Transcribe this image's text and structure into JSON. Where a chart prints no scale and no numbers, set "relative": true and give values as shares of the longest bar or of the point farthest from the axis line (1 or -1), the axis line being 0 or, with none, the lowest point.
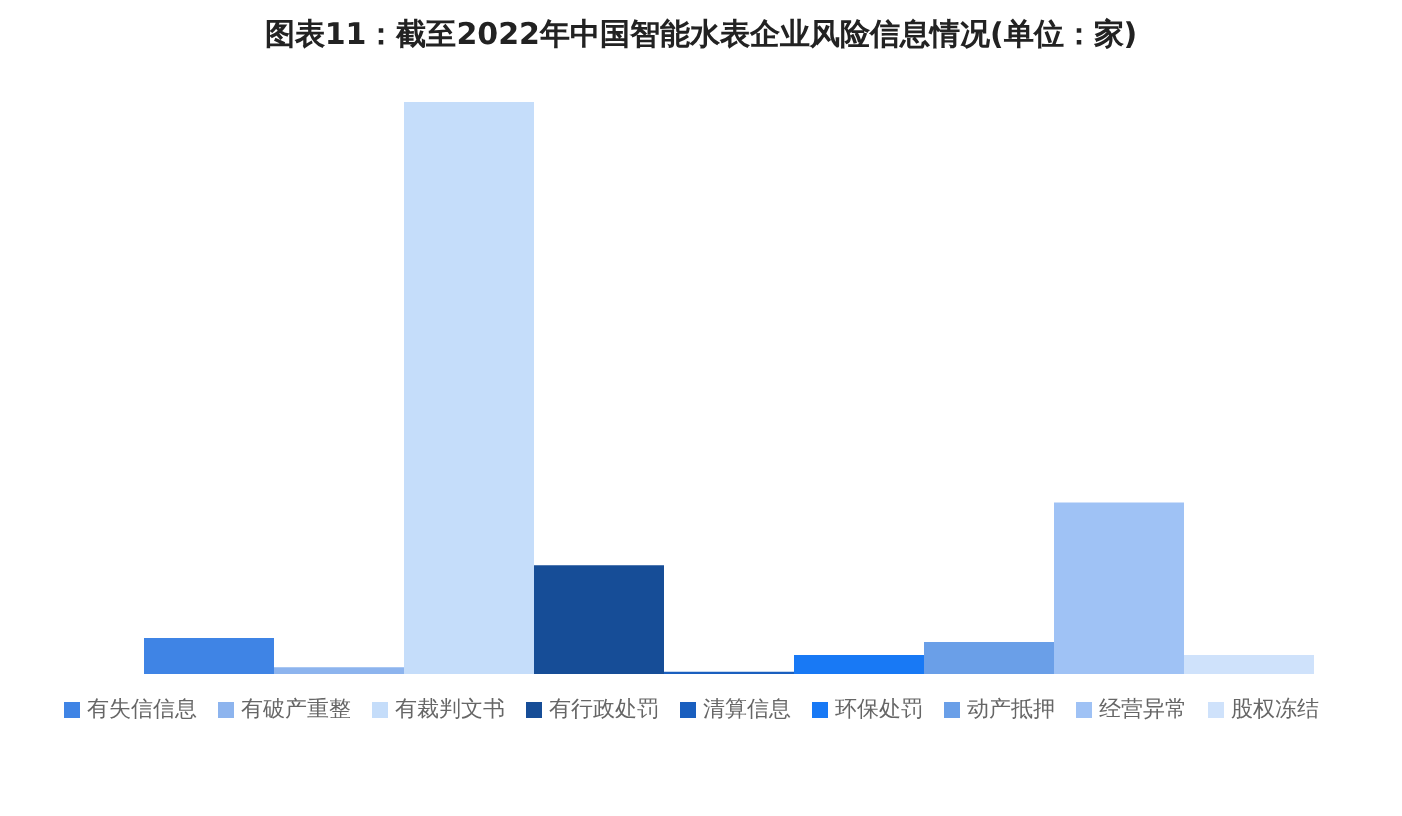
{
  "chart_data": {
    "type": "bar",
    "title": "图表11：截至2022年中国智能水表企业风险信息情况(单位：家)",
    "relative": true,
    "categories": [
      null
    ],
    "legend": "bottom",
    "grid": false,
    "series": [
      {
        "name": "有失信信息",
        "color": "#3f84e5",
        "values": [
          0.063
        ]
      },
      {
        "name": "有破产重整",
        "color": "#8db4ee",
        "values": [
          0.012
        ]
      },
      {
        "name": "有裁判文书",
        "color": "#c5ddfa",
        "values": [
          1
        ]
      },
      {
        "name": "有行政处罚",
        "color": "#164d97",
        "values": [
          0.19
        ]
      },
      {
        "name": "清算信息",
        "color": "#1a5fbf",
        "values": [
          0.004
        ]
      },
      {
        "name": "环保处罚",
        "color": "#1879f5",
        "values": [
          0.033
        ]
      },
      {
        "name": "动产抵押",
        "color": "#6a9fe8",
        "values": [
          0.056
        ]
      },
      {
        "name": "经营异常",
        "color": "#9fc2f5",
        "values": [
          0.3
        ]
      },
      {
        "name": "股权冻结",
        "color": "#cfe2fb",
        "values": [
          0.033
        ]
      }
    ]
  }
}
